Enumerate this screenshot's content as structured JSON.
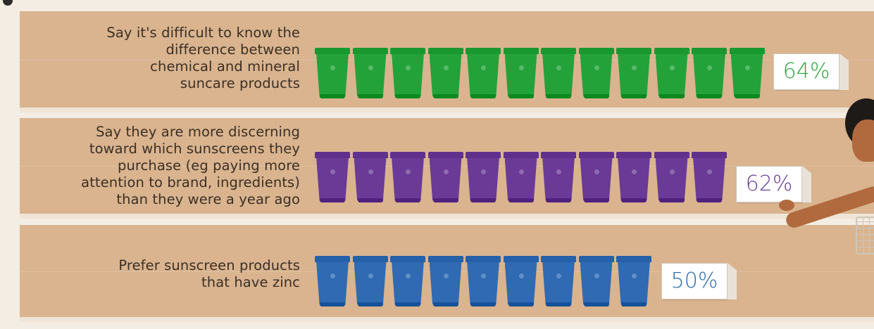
{
  "chart_data": {
    "type": "bar",
    "categories": [
      "Say it's difficult to know the\ndifference between\nchemical and mineral\nsuncare products",
      "Say they are more discerning\ntoward which sunscreens they\npurchase (eg paying more\nattention to brand, ingredients)\nthan they were a year ago",
      "Prefer sunscreen products\nthat have zinc"
    ],
    "values": [
      64,
      62,
      50
    ],
    "value_labels": [
      "64%",
      "62%",
      "50%"
    ],
    "unit_icon_counts": [
      12,
      11,
      9
    ],
    "colors": [
      "#23a23a",
      "#6a3a96",
      "#2f6ab3"
    ],
    "title": "",
    "xlabel": "",
    "ylabel": ""
  }
}
